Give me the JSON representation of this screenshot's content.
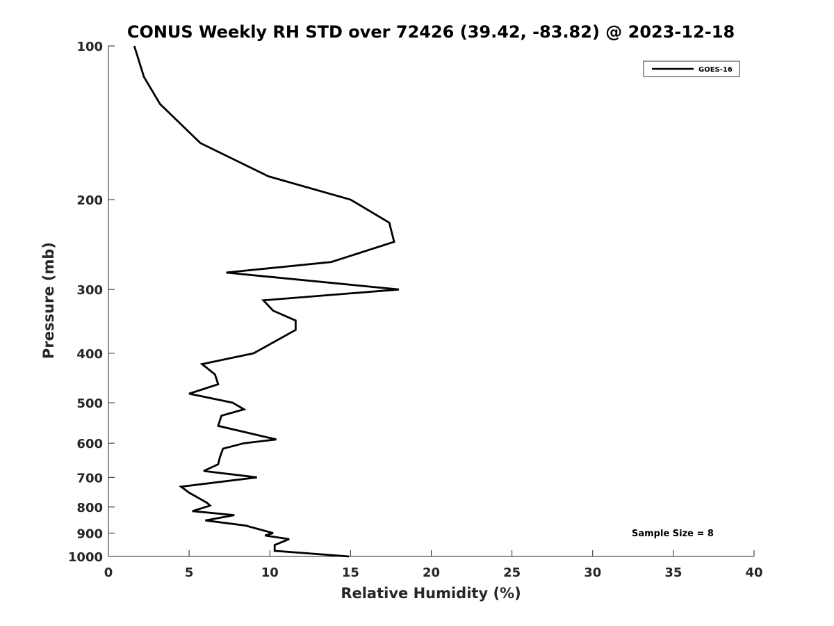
{
  "chart_data": {
    "type": "line",
    "title": "CONUS Weekly RH STD over 72426 (39.42, -83.82) @ 2023-12-18",
    "xlabel": "Relative Humidity (%)",
    "ylabel": "Pressure (mb)",
    "xlim": [
      0,
      40
    ],
    "ylim": [
      100,
      1000
    ],
    "y_scale": "log",
    "y_reversed": true,
    "x_ticks": [
      0,
      5,
      10,
      15,
      20,
      25,
      30,
      35,
      40
    ],
    "y_ticks": [
      100,
      200,
      300,
      400,
      500,
      600,
      700,
      800,
      900,
      1000
    ],
    "grid": false,
    "legend_position": "top-right",
    "series": [
      {
        "name": "GOES-16",
        "color": "#000000",
        "x": [
          1.6,
          2.2,
          3.2,
          5.7,
          9.9,
          15.0,
          17.4,
          17.7,
          13.8,
          7.3,
          18.0,
          9.6,
          10.2,
          11.6,
          11.6,
          9.0,
          5.8,
          6.6,
          6.8,
          5.0,
          7.7,
          8.4,
          7.0,
          6.8,
          10.4,
          8.4,
          7.1,
          6.9,
          6.8,
          5.9,
          9.2,
          4.5,
          5.0,
          6.1,
          6.3,
          5.2,
          7.8,
          6.0,
          8.5,
          10.2,
          9.7,
          11.2,
          10.3,
          10.3,
          14.9
        ],
        "y": [
          100,
          115,
          130,
          155,
          180,
          200,
          222,
          242,
          265,
          278,
          300,
          315,
          330,
          345,
          360,
          400,
          420,
          440,
          460,
          480,
          500,
          515,
          530,
          555,
          590,
          600,
          615,
          640,
          660,
          680,
          700,
          730,
          750,
          785,
          795,
          815,
          830,
          850,
          870,
          900,
          910,
          925,
          950,
          975,
          1000
        ]
      }
    ],
    "annotations": [
      "Sample Size = 8"
    ]
  }
}
